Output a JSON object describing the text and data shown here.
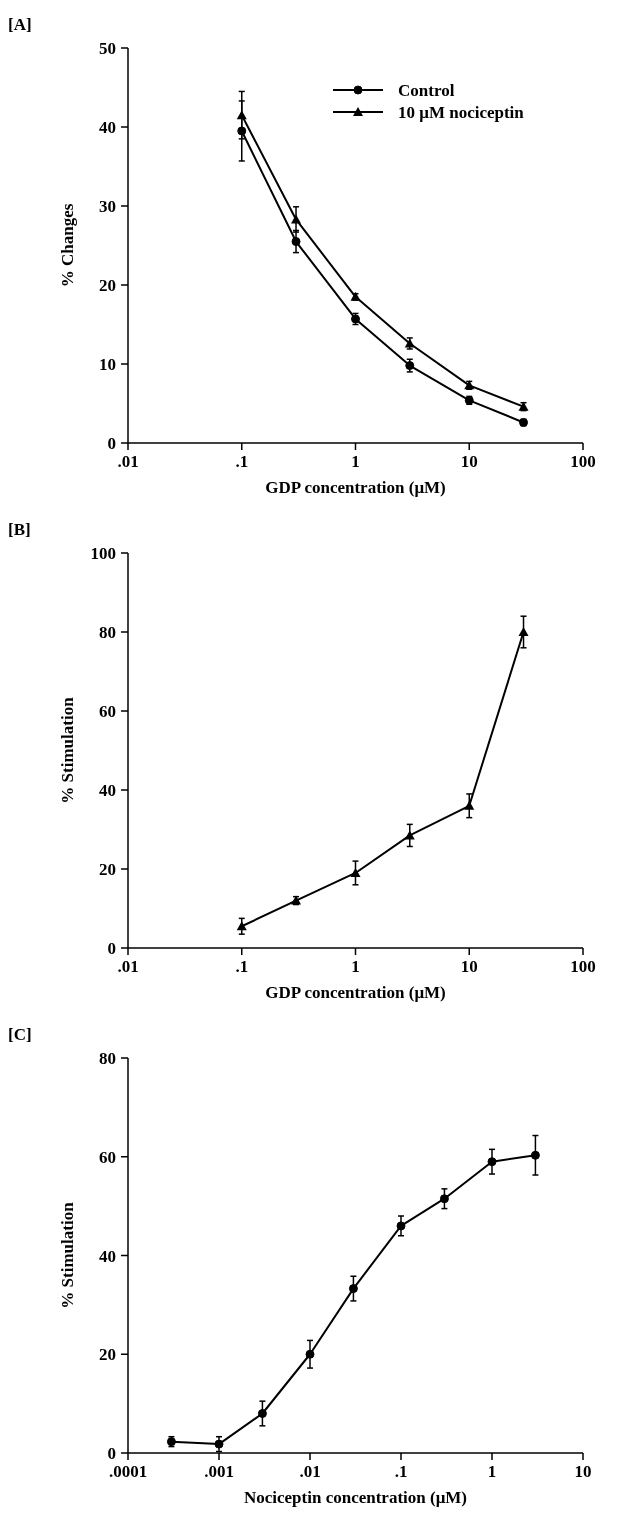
{
  "chart_data": [
    {
      "type": "line",
      "title": "[A]",
      "xlabel": "GDP concentration (μM)",
      "ylabel": "% Changes",
      "log": "x",
      "xlim": [
        0.01,
        100
      ],
      "xticks": [
        {
          "value": 0.01,
          "label": ".01"
        },
        {
          "value": 0.1,
          "label": ".1"
        },
        1,
        10,
        100
      ],
      "ylim": [
        0,
        50
      ],
      "yticks": [
        0,
        10,
        20,
        30,
        40,
        50
      ],
      "legend": "top right",
      "series": [
        {
          "name": "Control",
          "color": "#000000",
          "marker": "circle",
          "x": [
            0.1,
            0.3,
            1,
            3,
            10,
            30
          ],
          "values": [
            39.5,
            25.5,
            15.7,
            9.8,
            5.4,
            2.6
          ],
          "errors": [
            3.8,
            1.4,
            0.7,
            0.8,
            0.5,
            0.4
          ]
        },
        {
          "name": "10 μM nociceptin",
          "color": "#000000",
          "marker": "triangle",
          "x": [
            0.1,
            0.3,
            1,
            3,
            10,
            30
          ],
          "values": [
            41.5,
            28.3,
            18.5,
            12.6,
            7.3,
            4.6
          ],
          "errors": [
            3,
            1.6,
            0.4,
            0.7,
            0.5,
            0.5
          ]
        }
      ]
    },
    {
      "type": "line",
      "title": "[B]",
      "xlabel": "GDP concentration (μM)",
      "ylabel": "% Stimulation",
      "log": "x",
      "xlim": [
        0.01,
        100
      ],
      "xticks": [
        {
          "value": 0.01,
          "label": ".01"
        },
        {
          "value": 0.1,
          "label": ".1"
        },
        1,
        10,
        100
      ],
      "ylim": [
        0,
        100
      ],
      "yticks": [
        0,
        20,
        40,
        60,
        80,
        100
      ],
      "legend": false,
      "series": [
        {
          "color": "#000000",
          "marker": "triangle",
          "x": [
            0.1,
            0.3,
            1,
            3,
            10,
            30
          ],
          "values": [
            5.5,
            12,
            19,
            28.5,
            36,
            80
          ],
          "errors": [
            2,
            1,
            3,
            2.8,
            3,
            4
          ]
        }
      ]
    },
    {
      "type": "line",
      "title": "[C]",
      "xlabel": "Nociceptin concentration (μM)",
      "ylabel": "% Stimulation",
      "log": "x",
      "xlim": [
        0.0001,
        10
      ],
      "xticks": [
        {
          "value": 0.0001,
          "label": ".0001"
        },
        {
          "value": 0.001,
          "label": ".001"
        },
        {
          "value": 0.01,
          "label": ".01"
        },
        {
          "value": 0.1,
          "label": ".1"
        },
        1,
        10
      ],
      "ylim": [
        0,
        80
      ],
      "yticks": [
        0,
        20,
        40,
        60,
        80
      ],
      "legend": false,
      "series": [
        {
          "color": "#000000",
          "marker": "circle",
          "x": [
            0.0003,
            0.001,
            0.003,
            0.01,
            0.03,
            0.1,
            0.3,
            1,
            3
          ],
          "values": [
            2.3,
            1.8,
            8,
            20,
            33.3,
            46,
            51.5,
            59,
            60.3
          ],
          "errors": [
            1,
            1.5,
            2.5,
            2.8,
            2.5,
            2,
            2,
            2.5,
            4
          ]
        }
      ]
    }
  ]
}
